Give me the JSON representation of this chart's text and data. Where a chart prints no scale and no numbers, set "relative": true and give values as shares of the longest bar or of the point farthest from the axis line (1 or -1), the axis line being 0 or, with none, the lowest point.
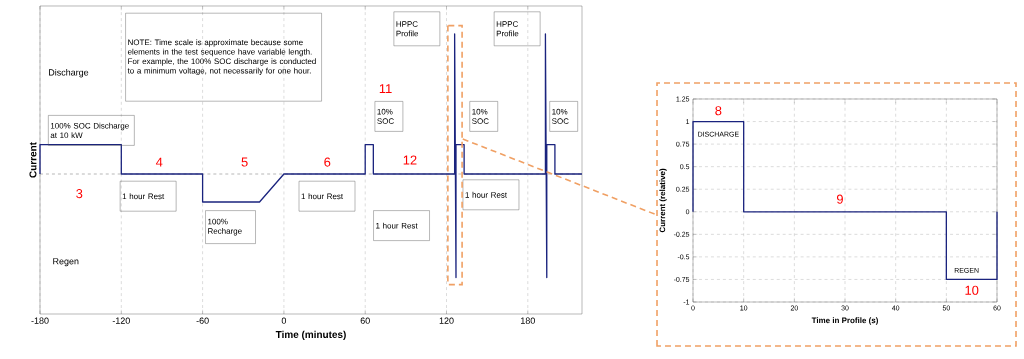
{
  "chart_data": [
    {
      "type": "line",
      "relative": true,
      "xlabel": "Time (minutes)",
      "ylabel": "Current",
      "color": "#1a237e",
      "grid": "x",
      "xlim": [
        -180,
        220
      ],
      "xticks": [
        -180,
        -120,
        -60,
        0,
        60,
        120,
        180
      ],
      "x": [
        -180,
        -180,
        -120,
        -120,
        -60,
        -60,
        -18,
        0,
        60,
        60,
        66,
        66,
        126,
        126,
        127,
        127,
        133,
        133,
        193,
        193,
        194,
        194,
        200,
        200,
        220
      ],
      "values": [
        0,
        0.21,
        0.21,
        0,
        0,
        -0.2,
        -0.2,
        0,
        0,
        0.21,
        0.21,
        0,
        0,
        1,
        -0.74,
        0.21,
        0.21,
        0,
        0,
        1,
        -0.74,
        0.21,
        0.21,
        0,
        0
      ],
      "ref_lines": [
        {
          "axis": "y",
          "value": 0,
          "color": "#888888",
          "line_style": "dashed"
        }
      ],
      "annotations": [
        "NOTE: Time scale is approximate because some elements in the test sequence have variable length. For example, the 100% SOC discharge is conducted to a minimum voltage, not necessarily for one hour.",
        "Discharge",
        "Regen",
        "100% SOC Discharge at 10 kW",
        "3",
        "4",
        "5",
        "6",
        "11",
        "12",
        "1 hour Rest",
        "100% Recharge",
        "1 hour Rest",
        "1 hour Rest",
        "1 hour Rest",
        "10% SOC",
        "10% SOC",
        "10% SOC",
        "HPPC Profile",
        "HPPC Profile"
      ]
    },
    {
      "type": "line",
      "xlabel": "Time in Profile (s)",
      "ylabel": "Current (relative)",
      "color": "#1a237e",
      "grid": true,
      "xlim": [
        0,
        60
      ],
      "ylim": [
        -1,
        1.25
      ],
      "xticks": [
        0,
        10,
        20,
        30,
        40,
        50,
        60
      ],
      "yticks": [
        -1,
        -0.75,
        -0.5,
        -0.25,
        0,
        0.25,
        0.5,
        0.75,
        1,
        1.25
      ],
      "x": [
        0,
        0,
        10,
        10,
        50,
        50,
        60,
        60
      ],
      "values": [
        0,
        1,
        1,
        0,
        0,
        -0.75,
        -0.75,
        0
      ],
      "annotations": [
        "DISCHARGE",
        "REGEN",
        "8",
        "9",
        "10"
      ]
    }
  ]
}
